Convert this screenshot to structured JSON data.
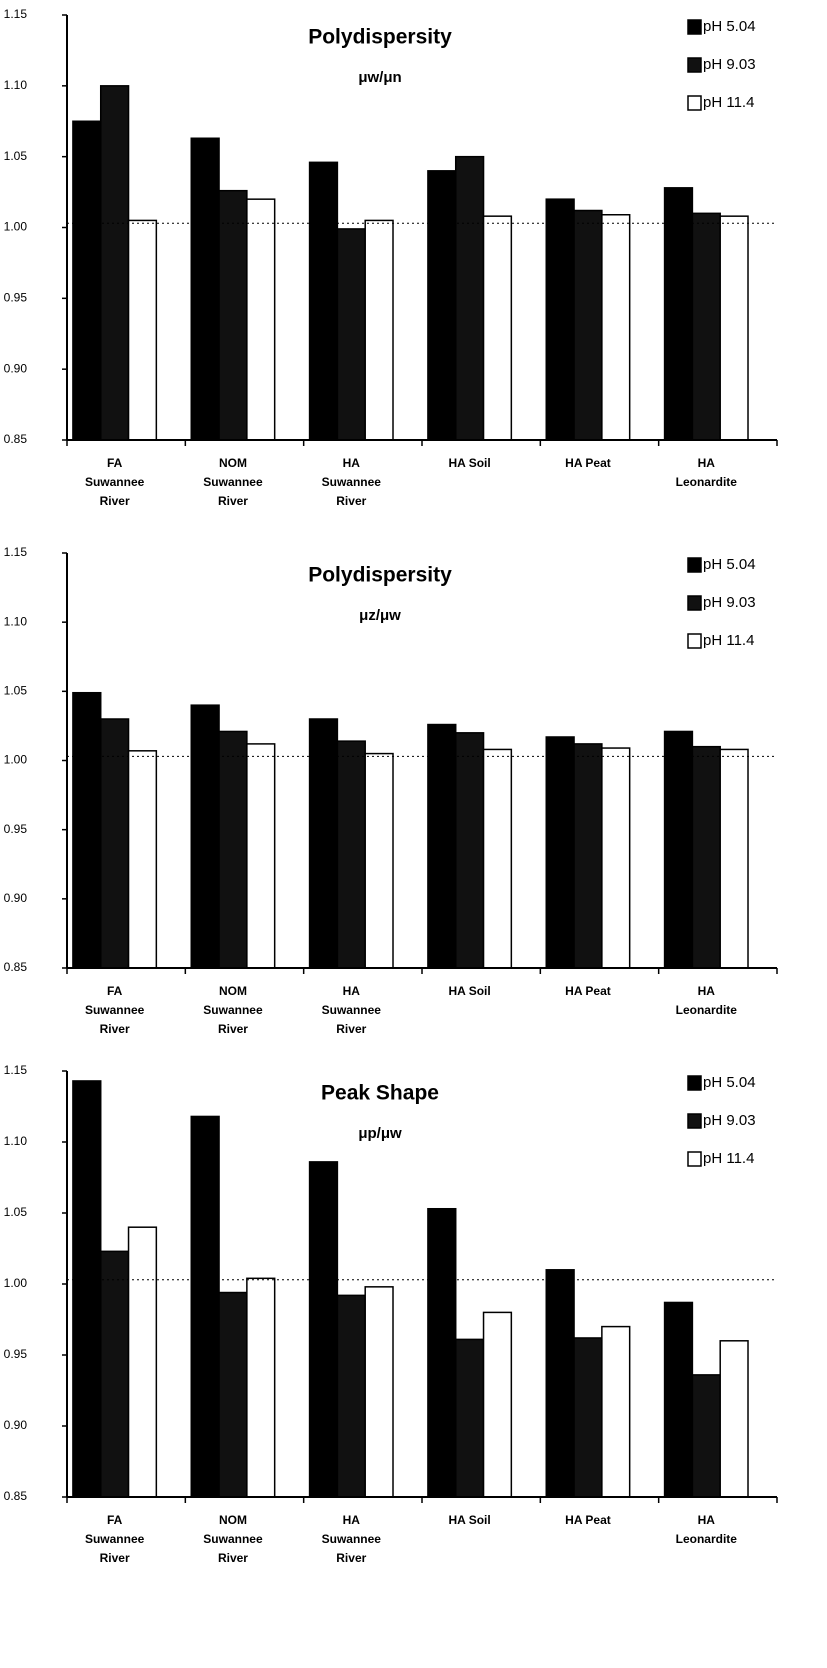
{
  "chart_data": [
    {
      "type": "bar",
      "title": "Polydispersity",
      "subtitle": "μw/μn",
      "categories": [
        [
          "FA",
          "Suwannee",
          "River"
        ],
        [
          "NOM",
          "Suwannee",
          "River"
        ],
        [
          "HA",
          "Suwannee",
          "River"
        ],
        [
          "HA Soil"
        ],
        [
          "HA Peat"
        ],
        [
          "HA",
          "Leonardite"
        ]
      ],
      "series": [
        {
          "name": "pH 5.04",
          "color": "#000000",
          "values": [
            1.075,
            1.063,
            1.046,
            1.04,
            1.02,
            1.028
          ]
        },
        {
          "name": "pH 9.03",
          "color": "#111111",
          "values": [
            1.1,
            1.026,
            0.999,
            1.05,
            1.012,
            1.01
          ]
        },
        {
          "name": "pH 11.4",
          "color": "#ffffff",
          "values": [
            1.005,
            1.02,
            1.005,
            1.008,
            1.009,
            1.008
          ]
        }
      ],
      "ylim": [
        0.85,
        1.15
      ],
      "yticks": [
        {
          "value": 0.85,
          "label": "0.85"
        },
        {
          "value": 0.9,
          "label": "0.90"
        },
        {
          "value": 0.95,
          "label": "0.95"
        },
        {
          "value": 1.0,
          "label": "1.00"
        },
        {
          "value": 1.05,
          "label": "1.05"
        },
        {
          "value": 1.1,
          "label": "1.10"
        },
        {
          "value": 1.15,
          "label": "1.15"
        }
      ],
      "reference_line": 1.003,
      "legend": "top-right"
    },
    {
      "type": "bar",
      "title": "Polydispersity",
      "subtitle": "μz/μw",
      "categories": [
        [
          "FA",
          "Suwannee",
          "River"
        ],
        [
          "NOM",
          "Suwannee",
          "River"
        ],
        [
          "HA",
          "Suwannee",
          "River"
        ],
        [
          "HA Soil"
        ],
        [
          "HA Peat"
        ],
        [
          "HA",
          "Leonardite"
        ]
      ],
      "series": [
        {
          "name": "pH 5.04",
          "color": "#000000",
          "values": [
            1.049,
            1.04,
            1.03,
            1.026,
            1.017,
            1.021
          ]
        },
        {
          "name": "pH 9.03",
          "color": "#111111",
          "values": [
            1.03,
            1.021,
            1.014,
            1.02,
            1.012,
            1.01
          ]
        },
        {
          "name": "pH 11.4",
          "color": "#ffffff",
          "values": [
            1.007,
            1.012,
            1.005,
            1.008,
            1.009,
            1.008
          ]
        }
      ],
      "ylim": [
        0.85,
        1.15
      ],
      "yticks": [
        {
          "value": 0.85,
          "label": "0.85"
        },
        {
          "value": 0.9,
          "label": "0.90"
        },
        {
          "value": 0.95,
          "label": "0.95"
        },
        {
          "value": 1.0,
          "label": "1.00"
        },
        {
          "value": 1.05,
          "label": "1.05"
        },
        {
          "value": 1.1,
          "label": "1.10"
        },
        {
          "value": 1.15,
          "label": "1.15"
        }
      ],
      "reference_line": 1.003,
      "legend": "top-right"
    },
    {
      "type": "bar",
      "title": "Peak Shape",
      "subtitle": "μp/μw",
      "categories": [
        [
          "FA",
          "Suwannee",
          "River"
        ],
        [
          "NOM",
          "Suwannee",
          "River"
        ],
        [
          "HA",
          "Suwannee",
          "River"
        ],
        [
          "HA Soil"
        ],
        [
          "HA Peat"
        ],
        [
          "HA",
          "Leonardite"
        ]
      ],
      "series": [
        {
          "name": "pH 5.04",
          "color": "#000000",
          "values": [
            1.143,
            1.118,
            1.086,
            1.053,
            1.01,
            0.987
          ]
        },
        {
          "name": "pH 9.03",
          "color": "#111111",
          "values": [
            1.023,
            0.994,
            0.992,
            0.961,
            0.962,
            0.936
          ]
        },
        {
          "name": "pH 11.4",
          "color": "#ffffff",
          "values": [
            1.04,
            1.004,
            0.998,
            0.98,
            0.97,
            0.96
          ]
        }
      ],
      "ylim": [
        0.85,
        1.15
      ],
      "yticks": [
        {
          "value": 0.85,
          "label": "0.85"
        },
        {
          "value": 0.9,
          "label": "0.90"
        },
        {
          "value": 0.95,
          "label": "0.95"
        },
        {
          "value": 1.0,
          "label": "1.00"
        },
        {
          "value": 1.05,
          "label": "1.05"
        },
        {
          "value": 1.1,
          "label": "1.10"
        },
        {
          "value": 1.15,
          "label": "1.15"
        }
      ],
      "reference_line": 1.003,
      "legend": "top-right"
    }
  ]
}
